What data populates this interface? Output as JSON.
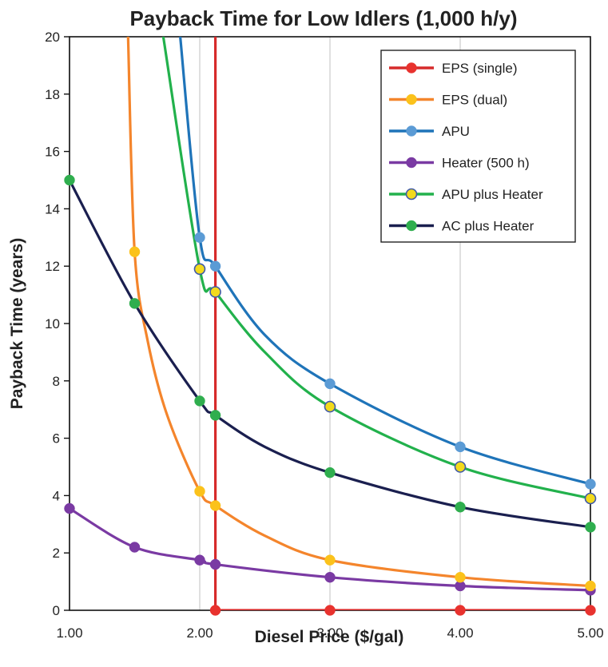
{
  "chart_data": {
    "type": "line",
    "title": "Payback Time for Low Idlers (1,000 h/y)",
    "xlabel": "Diesel Price ($/gal)",
    "ylabel": "Payback Time (years)",
    "xlim": [
      1.0,
      5.0
    ],
    "ylim": [
      0,
      20
    ],
    "x_ticks": [
      1.0,
      2.0,
      3.0,
      4.0,
      5.0
    ],
    "x_tick_labels": [
      "1.00",
      "2.00",
      "3.00",
      "4.00",
      "5.00"
    ],
    "y_ticks": [
      0,
      2,
      4,
      6,
      8,
      10,
      12,
      14,
      16,
      18,
      20
    ],
    "y_tick_labels": [
      "0",
      "2",
      "4",
      "6",
      "8",
      "10",
      "12",
      "14",
      "16",
      "18",
      "20"
    ],
    "grid": "vertical",
    "legend_position": "top-right",
    "series": [
      {
        "name": "EPS (single)",
        "color": "#d62b2b",
        "marker_fill": "#e8322e",
        "marker_stroke": "#e8322e",
        "curve": [
          [
            2.12,
            20
          ],
          [
            2.12,
            0
          ],
          [
            3.0,
            0
          ],
          [
            4.0,
            0
          ],
          [
            5.0,
            0
          ]
        ],
        "markers": [
          [
            2.12,
            0
          ],
          [
            3.0,
            0
          ],
          [
            4.0,
            0
          ],
          [
            5.0,
            0
          ]
        ]
      },
      {
        "name": "EPS (dual)",
        "color": "#f4852c",
        "marker_fill": "#fbc21b",
        "marker_stroke": "#fbc21b",
        "curve": [
          [
            1.45,
            20
          ],
          [
            1.5,
            12.5
          ],
          [
            1.6,
            9.4
          ],
          [
            1.75,
            6.8
          ],
          [
            2.0,
            4.15
          ],
          [
            2.12,
            3.65
          ],
          [
            2.5,
            2.6
          ],
          [
            3.0,
            1.75
          ],
          [
            4.0,
            1.15
          ],
          [
            5.0,
            0.85
          ]
        ],
        "markers": [
          [
            1.5,
            12.5
          ],
          [
            2.0,
            4.15
          ],
          [
            2.12,
            3.65
          ],
          [
            3.0,
            1.75
          ],
          [
            4.0,
            1.15
          ],
          [
            5.0,
            0.85
          ]
        ]
      },
      {
        "name": "APU",
        "color": "#1f74b9",
        "marker_fill": "#5b9bd5",
        "marker_stroke": "#5b9bd5",
        "curve": [
          [
            1.85,
            20
          ],
          [
            2.0,
            13.0
          ],
          [
            2.12,
            12.0
          ],
          [
            2.5,
            9.6
          ],
          [
            3.0,
            7.9
          ],
          [
            4.0,
            5.7
          ],
          [
            5.0,
            4.4
          ]
        ],
        "markers": [
          [
            2.0,
            13.0
          ],
          [
            2.12,
            12.0
          ],
          [
            3.0,
            7.9
          ],
          [
            4.0,
            5.7
          ],
          [
            5.0,
            4.4
          ]
        ]
      },
      {
        "name": "Heater (500 h)",
        "color": "#7a3aa3",
        "marker_fill": "#7a3aa3",
        "marker_stroke": "#7a3aa3",
        "curve": [
          [
            1.0,
            3.55
          ],
          [
            1.5,
            2.2
          ],
          [
            2.0,
            1.75
          ],
          [
            2.12,
            1.6
          ],
          [
            3.0,
            1.15
          ],
          [
            4.0,
            0.85
          ],
          [
            5.0,
            0.7
          ]
        ],
        "markers": [
          [
            1.0,
            3.55
          ],
          [
            1.5,
            2.2
          ],
          [
            2.0,
            1.75
          ],
          [
            2.12,
            1.6
          ],
          [
            3.0,
            1.15
          ],
          [
            4.0,
            0.85
          ],
          [
            5.0,
            0.7
          ]
        ]
      },
      {
        "name": "APU plus Heater",
        "color": "#22b14c",
        "marker_fill": "#f2da1c",
        "marker_stroke": "#3f5aa8",
        "curve": [
          [
            1.72,
            20
          ],
          [
            2.0,
            11.9
          ],
          [
            2.12,
            11.1
          ],
          [
            2.5,
            9.0
          ],
          [
            3.0,
            7.1
          ],
          [
            4.0,
            5.0
          ],
          [
            5.0,
            3.9
          ]
        ],
        "markers": [
          [
            2.0,
            11.9
          ],
          [
            2.12,
            11.1
          ],
          [
            3.0,
            7.1
          ],
          [
            4.0,
            5.0
          ],
          [
            5.0,
            3.9
          ]
        ]
      },
      {
        "name": "AC plus Heater",
        "color": "#1a1f4f",
        "marker_fill": "#2fae4e",
        "marker_stroke": "#2fae4e",
        "curve": [
          [
            1.0,
            15.0
          ],
          [
            1.5,
            10.7
          ],
          [
            2.0,
            7.3
          ],
          [
            2.12,
            6.8
          ],
          [
            2.5,
            5.7
          ],
          [
            3.0,
            4.8
          ],
          [
            4.0,
            3.6
          ],
          [
            5.0,
            2.9
          ]
        ],
        "markers": [
          [
            1.0,
            15.0
          ],
          [
            1.5,
            10.7
          ],
          [
            2.0,
            7.3
          ],
          [
            2.12,
            6.8
          ],
          [
            3.0,
            4.8
          ],
          [
            4.0,
            3.6
          ],
          [
            5.0,
            2.9
          ]
        ]
      }
    ]
  }
}
